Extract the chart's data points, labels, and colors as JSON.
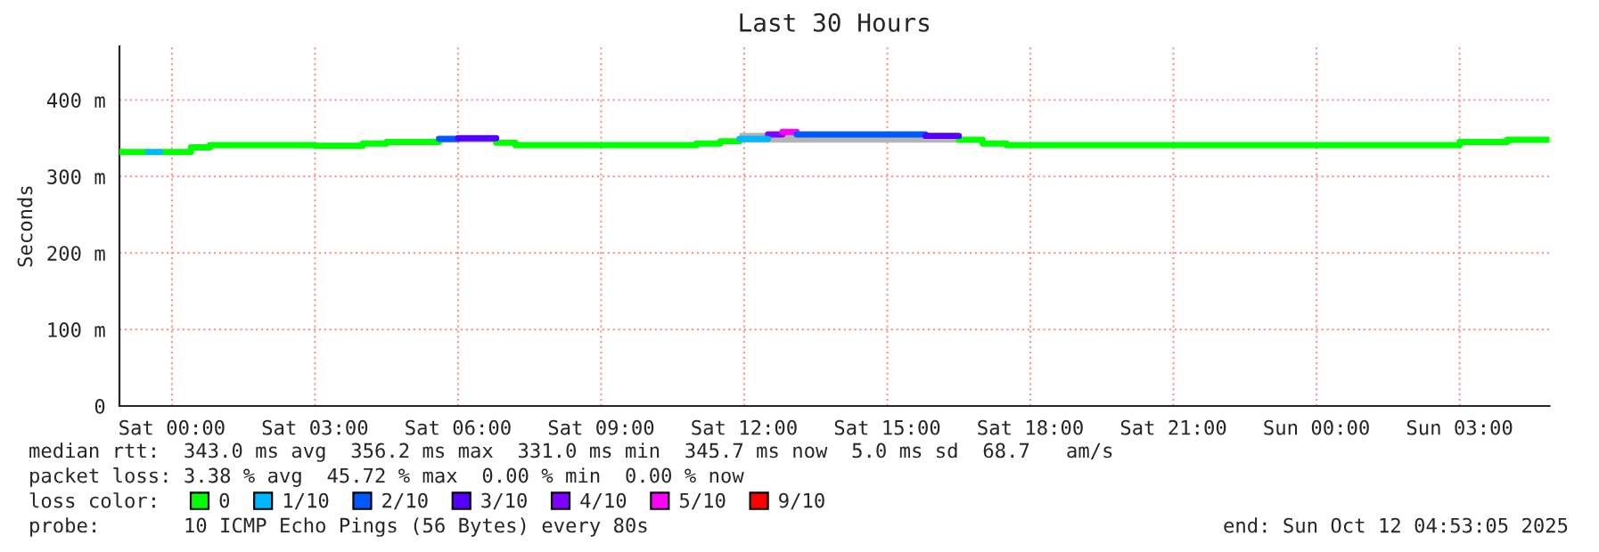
{
  "chart_data": {
    "type": "step",
    "title": "Last 30 Hours",
    "ylabel": "Seconds",
    "legend_title": "loss color:",
    "legend": "bottom",
    "grid": true,
    "line_style": "solid",
    "marker": "none",
    "xlim": [
      "2025-10-10T22:54",
      "2025-10-12T04:53"
    ],
    "ylim": [
      0,
      470
    ],
    "xticks": [
      {
        "value": "2025-10-11T00:00",
        "label": "Sat 00:00"
      },
      {
        "value": "2025-10-11T03:00",
        "label": "Sat 03:00"
      },
      {
        "value": "2025-10-11T06:00",
        "label": "Sat 06:00"
      },
      {
        "value": "2025-10-11T09:00",
        "label": "Sat 09:00"
      },
      {
        "value": "2025-10-11T12:00",
        "label": "Sat 12:00"
      },
      {
        "value": "2025-10-11T15:00",
        "label": "Sat 15:00"
      },
      {
        "value": "2025-10-11T18:00",
        "label": "Sat 18:00"
      },
      {
        "value": "2025-10-11T21:00",
        "label": "Sat 21:00"
      },
      {
        "value": "2025-10-12T00:00",
        "label": "Sun 00:00"
      },
      {
        "value": "2025-10-12T03:00",
        "label": "Sun 03:00"
      }
    ],
    "yticks": [
      {
        "value": 0,
        "label": "0"
      },
      {
        "value": 100,
        "label": "100 m"
      },
      {
        "value": 200,
        "label": "200 m"
      },
      {
        "value": 300,
        "label": "300 m"
      },
      {
        "value": 400,
        "label": "400 m"
      }
    ],
    "series": [
      {
        "name": "0",
        "color": "#00ff00",
        "x": [
          "2025-10-10T22:54",
          "2025-10-10T23:30",
          "2025-10-10T23:45",
          "2025-10-11T00:24",
          "2025-10-11T00:48",
          "2025-10-11T03:00",
          "2025-10-11T04:00",
          "2025-10-11T04:30",
          "2025-10-11T05:36",
          "2025-10-11T06:48",
          "2025-10-11T07:12",
          "2025-10-11T11:00",
          "2025-10-11T11:30",
          "2025-10-11T11:54",
          "2025-10-11T16:30",
          "2025-10-11T17:00",
          "2025-10-11T17:30",
          "2025-10-12T03:00",
          "2025-10-12T04:00",
          "2025-10-12T04:53"
        ],
        "values": [
          332,
          null,
          332,
          338,
          341,
          340,
          343,
          345,
          null,
          344,
          341,
          343,
          346,
          null,
          348,
          343,
          341,
          345,
          348,
          348
        ],
        "lower": [
          331,
          331,
          331,
          337,
          340,
          339,
          342,
          344,
          344,
          343,
          340,
          342,
          344,
          344,
          346,
          342,
          340,
          344,
          346,
          346
        ],
        "upper": [
          334,
          334,
          334,
          340,
          342,
          341,
          345,
          348,
          352,
          347,
          342,
          345,
          349,
          357,
          350,
          345,
          342,
          347,
          350,
          350
        ]
      },
      {
        "name": "1/10",
        "type": "line",
        "color": "#00b8ff",
        "x": [
          "2025-10-10T23:30",
          "2025-10-10T23:45"
        ],
        "values": [
          332,
          332
        ]
      },
      {
        "name": "2/10",
        "type": "line",
        "color": "#0059ff",
        "x": [
          "2025-10-11T05:36",
          "2025-10-11T06:00"
        ],
        "values": [
          349,
          349
        ]
      },
      {
        "name": "3/10",
        "type": "line",
        "color": "#5500ff",
        "x": [
          "2025-10-11T06:00",
          "2025-10-11T06:48"
        ],
        "values": [
          350,
          350
        ]
      },
      {
        "name": "4/10",
        "type": "line",
        "color": "#7e00ff",
        "x": [
          "2025-10-11T12:30",
          "2025-10-11T12:48"
        ],
        "values": [
          355,
          355
        ]
      },
      {
        "name": "5/10",
        "type": "line",
        "color": "#ff00ff",
        "x": [
          "2025-10-11T12:48",
          "2025-10-11T13:06"
        ],
        "values": [
          358,
          358
        ]
      },
      {
        "name": "9/10",
        "type": "line",
        "color": "#ff0000"
      },
      {
        "type": "line",
        "color": "#00b8ff",
        "x": [
          "2025-10-11T11:54",
          "2025-10-11T12:30"
        ],
        "values": [
          349,
          349
        ]
      },
      {
        "type": "line",
        "color": "#0059ff",
        "x": [
          "2025-10-11T13:06",
          "2025-10-11T15:48"
        ],
        "values": [
          355,
          355
        ]
      },
      {
        "type": "line",
        "color": "#5500ff",
        "x": [
          "2025-10-11T15:48",
          "2025-10-11T16:30"
        ],
        "values": [
          353,
          353
        ]
      }
    ],
    "annotations": [
      "median rtt:  343.0 ms avg  356.2 ms max  331.0 ms min  345.7 ms now  5.0 ms sd  68.7   am/s",
      "packet loss: 3.38 % avg  45.72 % max  0.00 % min  0.00 % now",
      "probe:       10 ICMP Echo Pings (56 Bytes) every 80s",
      "end: Sun Oct 12 04:53:05 2025"
    ]
  }
}
